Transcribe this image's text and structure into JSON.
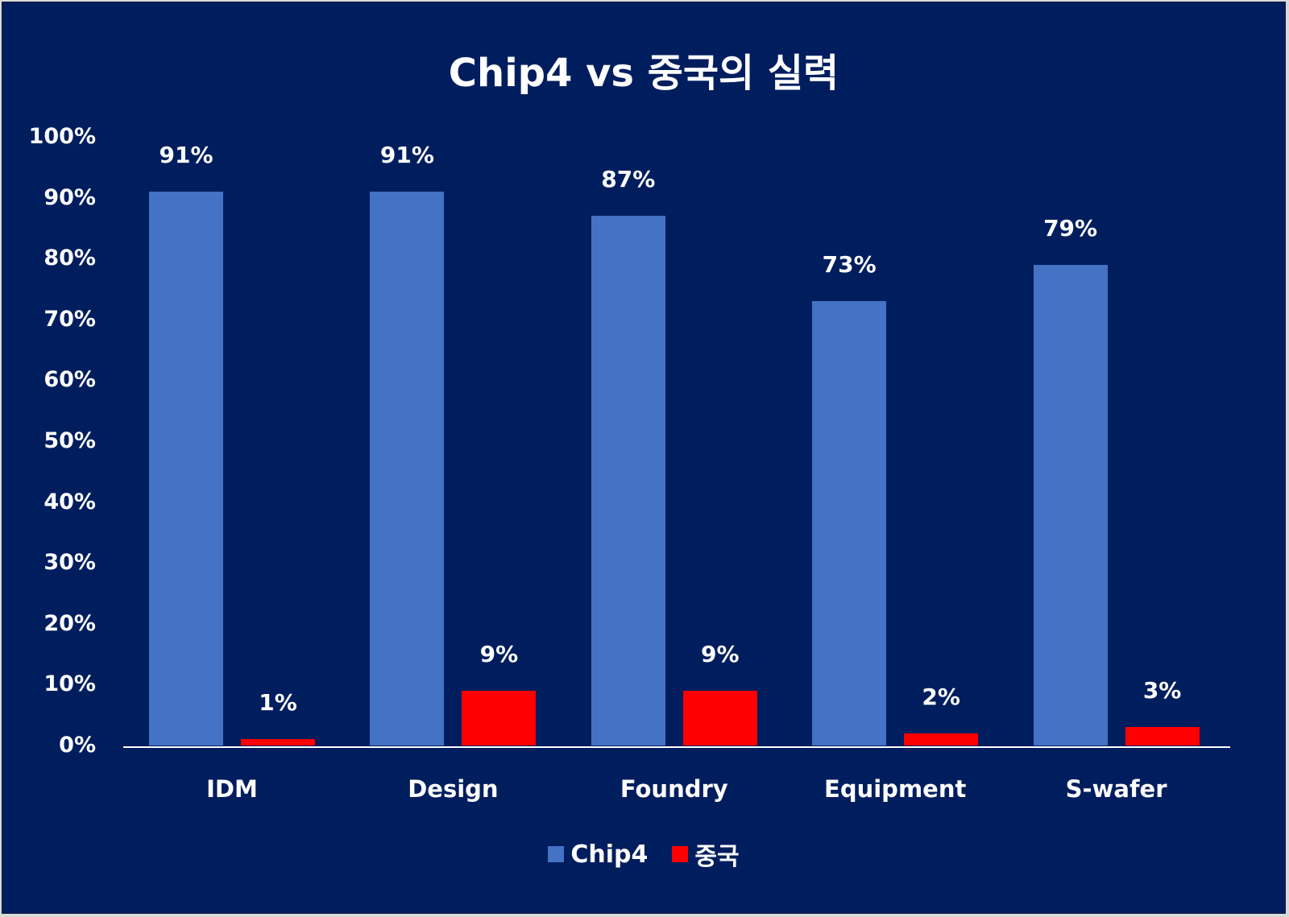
{
  "chart_data": {
    "type": "bar",
    "title": "Chip4 vs 중국의 실력",
    "categories": [
      "IDM",
      "Design",
      "Foundry",
      "Equipment",
      "S-wafer"
    ],
    "series": [
      {
        "name": "Chip4",
        "color": "#4472c4",
        "values": [
          91,
          91,
          87,
          73,
          79
        ],
        "labels": [
          "91%",
          "91%",
          "87%",
          "73%",
          "79%"
        ]
      },
      {
        "name": "중국",
        "color": "#ff0000",
        "values": [
          1,
          9,
          9,
          2,
          3
        ],
        "labels": [
          "1%",
          "9%",
          "9%",
          "2%",
          "3%"
        ]
      }
    ],
    "xlabel": "",
    "ylabel": "",
    "ylim": [
      0,
      100
    ],
    "yticks": [
      "0%",
      "10%",
      "20%",
      "30%",
      "40%",
      "50%",
      "60%",
      "70%",
      "80%",
      "90%",
      "100%"
    ],
    "grid": false,
    "legend_position": "bottom",
    "background": "#001e5e"
  },
  "legend": [
    {
      "label": "Chip4",
      "color": "#4472c4"
    },
    {
      "label": "중국",
      "color": "#ff0000"
    }
  ]
}
